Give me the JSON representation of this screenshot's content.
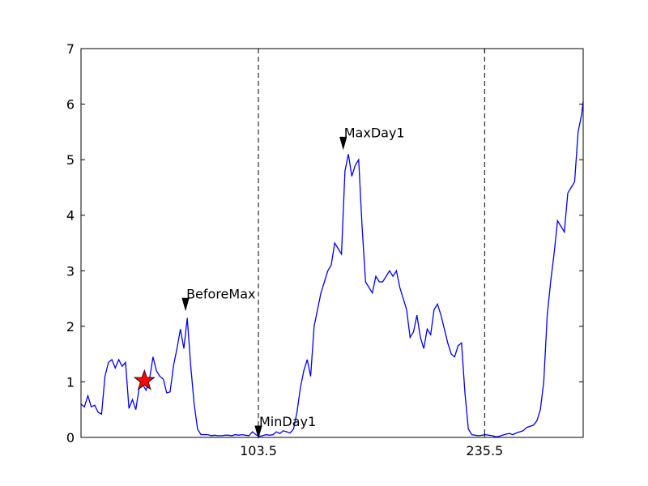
{
  "chart_data": {
    "type": "line",
    "title": "",
    "xlabel": "",
    "ylabel": "",
    "xlim": [
      0,
      293
    ],
    "ylim": [
      0,
      7
    ],
    "grid": false,
    "y_ticks": [
      0,
      1,
      2,
      3,
      4,
      5,
      6,
      7
    ],
    "x_ticks": [
      103.5,
      235.5
    ],
    "x_tick_labels": [
      "103.5",
      "235.5"
    ],
    "vlines": [
      103.5,
      235.5
    ],
    "line_color": "#0000ff",
    "series": [
      {
        "x": [
          0,
          2,
          4,
          6,
          8,
          10,
          12,
          14,
          16,
          18,
          20,
          22,
          24,
          26,
          28,
          30,
          32,
          34,
          36,
          38,
          40,
          42,
          44,
          46,
          48,
          50,
          52,
          54,
          56,
          58,
          60,
          62,
          64,
          66,
          68,
          70,
          72,
          74,
          76,
          78,
          80,
          82,
          84,
          86,
          88,
          90,
          92,
          94,
          96,
          98,
          100,
          102,
          104,
          106,
          108,
          110,
          112,
          114,
          116,
          118,
          120,
          122,
          124,
          126,
          128,
          130,
          132,
          134,
          136,
          138,
          140,
          142,
          144,
          146,
          148,
          150,
          152,
          154,
          156,
          158,
          160,
          162,
          164,
          166,
          168,
          170,
          172,
          174,
          176,
          178,
          180,
          182,
          184,
          186,
          188,
          190,
          192,
          194,
          196,
          198,
          200,
          202,
          204,
          206,
          208,
          210,
          212,
          214,
          216,
          218,
          220,
          222,
          224,
          226,
          228,
          230,
          232,
          234,
          236,
          238,
          240,
          242,
          244,
          246,
          248,
          250,
          252,
          254,
          256,
          258,
          260,
          262,
          264,
          266,
          268,
          270,
          272,
          274,
          276,
          278,
          280,
          282,
          284,
          286,
          288,
          290,
          292,
          293
        ],
        "y": [
          0.6,
          0.55,
          0.75,
          0.55,
          0.58,
          0.45,
          0.42,
          1.1,
          1.35,
          1.4,
          1.25,
          1.4,
          1.28,
          1.35,
          0.52,
          0.68,
          0.5,
          0.9,
          0.95,
          0.85,
          1.05,
          1.45,
          1.2,
          1.1,
          1.05,
          0.8,
          0.82,
          1.3,
          1.6,
          1.95,
          1.6,
          2.15,
          1.3,
          0.6,
          0.15,
          0.05,
          0.05,
          0.05,
          0.03,
          0.04,
          0.03,
          0.03,
          0.04,
          0.04,
          0.03,
          0.05,
          0.04,
          0.05,
          0.04,
          0.03,
          0.1,
          0.05,
          0.02,
          0.03,
          0.05,
          0.04,
          0.05,
          0.1,
          0.07,
          0.12,
          0.1,
          0.08,
          0.15,
          0.45,
          0.9,
          1.2,
          1.4,
          1.1,
          2.0,
          2.3,
          2.6,
          2.8,
          3.0,
          3.1,
          3.5,
          3.4,
          3.3,
          4.8,
          5.1,
          4.7,
          4.9,
          5.0,
          3.8,
          2.8,
          2.7,
          2.6,
          2.9,
          2.8,
          2.8,
          2.9,
          3.0,
          2.9,
          3.0,
          2.7,
          2.5,
          2.3,
          1.8,
          1.9,
          2.2,
          1.8,
          1.6,
          1.95,
          1.85,
          2.3,
          2.4,
          2.2,
          1.95,
          1.7,
          1.5,
          1.45,
          1.65,
          1.7,
          0.8,
          0.15,
          0.05,
          0.04,
          0.03,
          0.04,
          0.05,
          0.04,
          0.03,
          0.01,
          0.02,
          0.04,
          0.06,
          0.07,
          0.05,
          0.08,
          0.1,
          0.12,
          0.18,
          0.2,
          0.22,
          0.3,
          0.5,
          1.0,
          2.2,
          2.8,
          3.3,
          3.9,
          3.8,
          3.7,
          4.4,
          4.5,
          4.6,
          5.5,
          5.8,
          6.05
        ]
      }
    ],
    "annotations": [
      {
        "label": "BeforeMax",
        "x": 61,
        "y": 2.3
      },
      {
        "label": "MinDay1",
        "x": 103.5,
        "y": 0.0
      },
      {
        "label": "MaxDay1",
        "x": 153,
        "y": 5.2
      }
    ],
    "star_marker": {
      "x": 37,
      "y": 1.02,
      "color": "#ff0000"
    }
  }
}
